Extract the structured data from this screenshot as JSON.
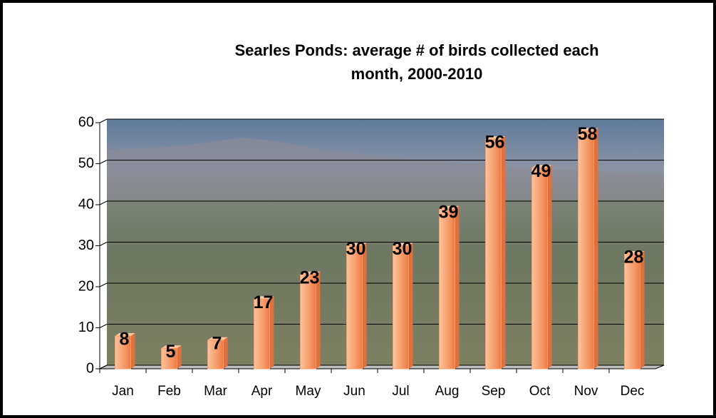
{
  "chart_data": {
    "type": "bar",
    "title": "Searles Ponds:  average # of birds collected each month, 2000-2010",
    "categories": [
      "Jan",
      "Feb",
      "Mar",
      "Apr",
      "May",
      "Jun",
      "Jul",
      "Aug",
      "Sep",
      "Oct",
      "Nov",
      "Dec"
    ],
    "values": [
      8,
      5,
      7,
      17,
      23,
      30,
      30,
      39,
      56,
      49,
      58,
      28
    ],
    "color": "#f59a68",
    "ylim": [
      0,
      60
    ],
    "yticks": [
      0,
      10,
      20,
      30,
      40,
      50,
      60
    ],
    "grid": true
  }
}
